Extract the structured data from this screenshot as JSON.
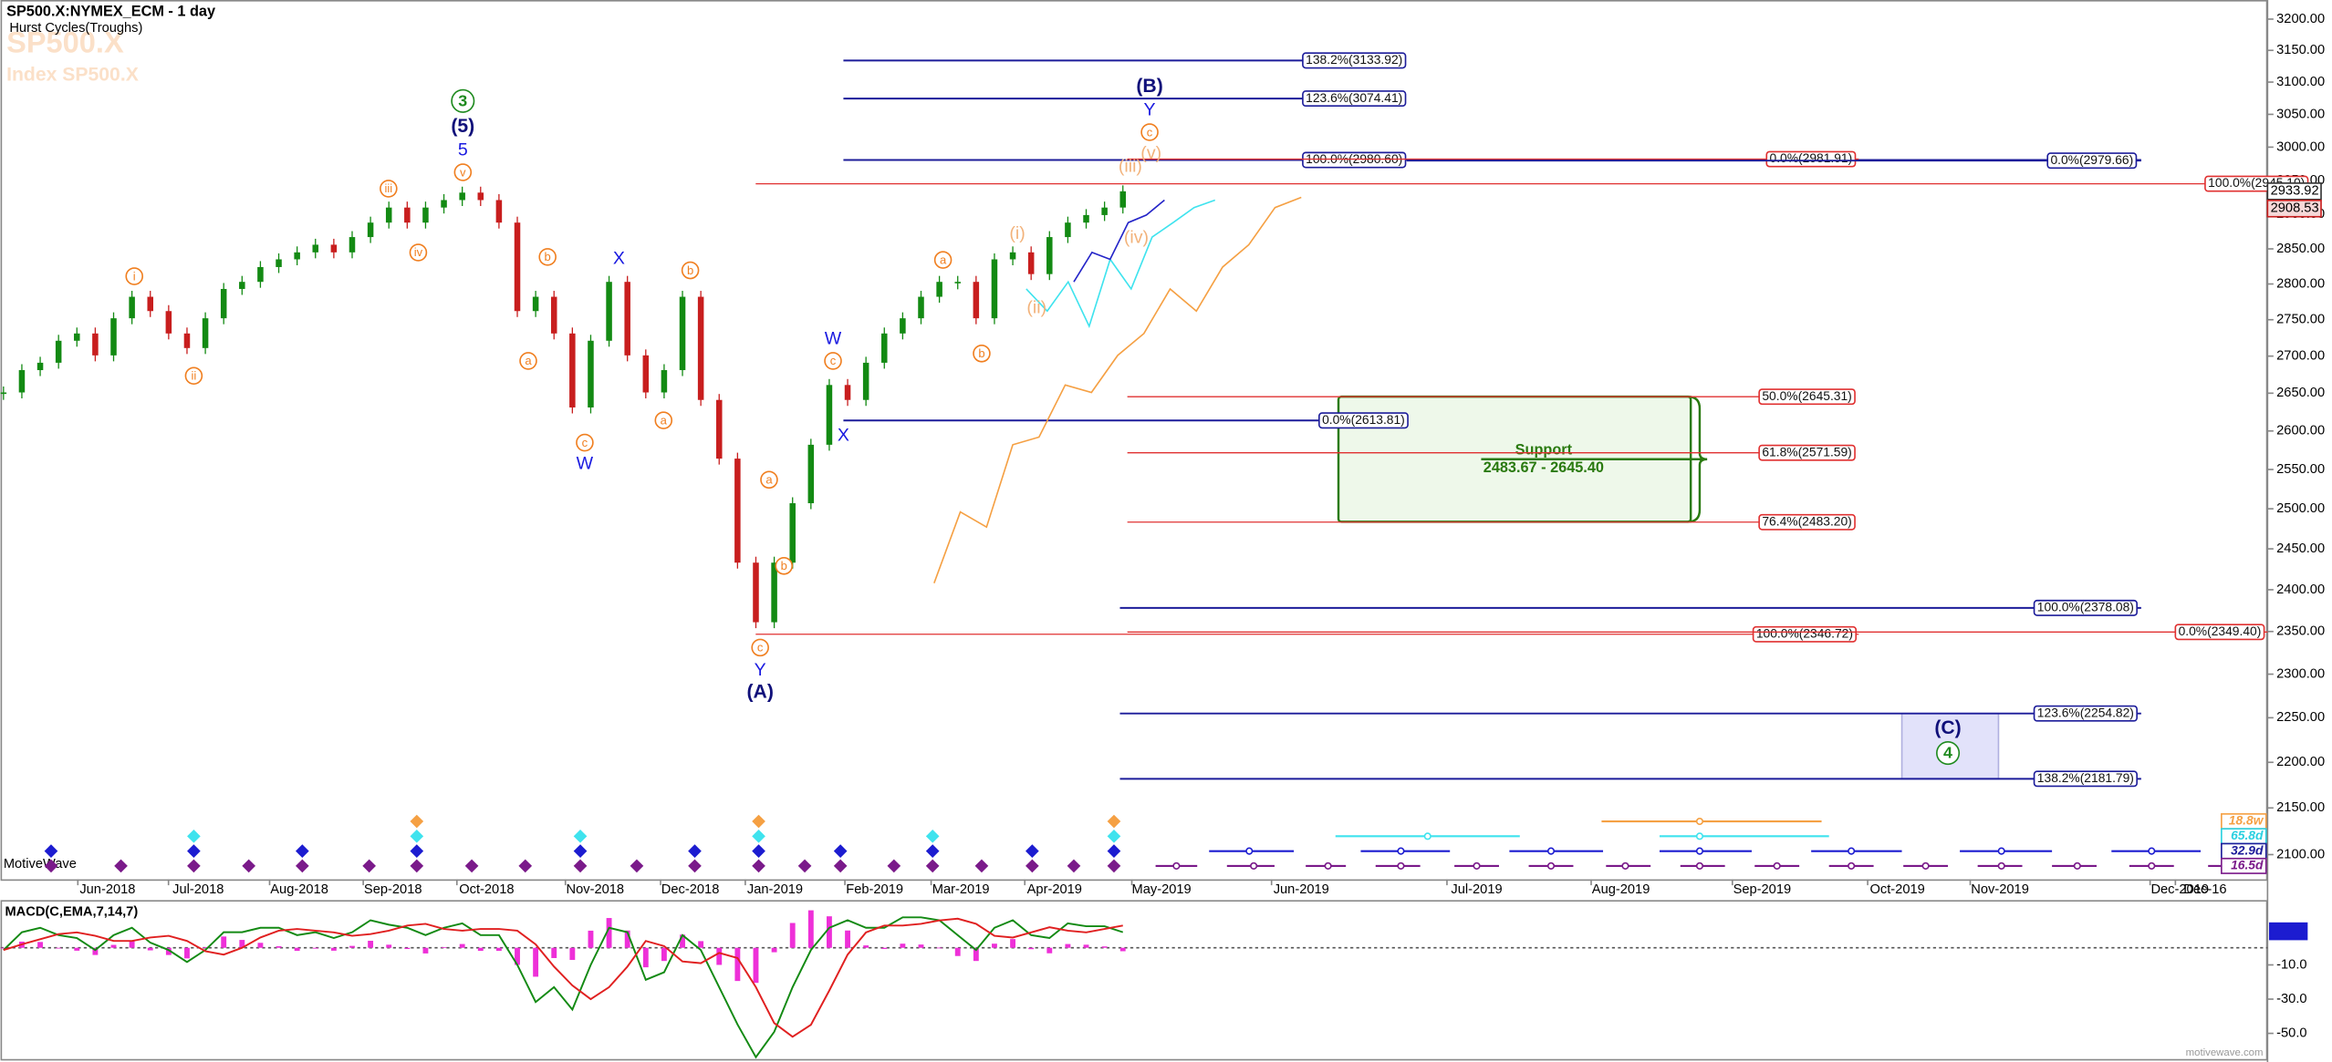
{
  "chart_data": [
    {
      "type": "candlestick",
      "title": "SP500.X:NYMEX_ECM - 1 day",
      "subtitle": "Hurst Cycles(Troughs)",
      "watermark": [
        "SP500.X",
        "Index SP500.X"
      ],
      "log_scale": true,
      "ylim": [
        2074,
        3231
      ],
      "yticks": [
        {
          "value": 2100,
          "label": "2100.00"
        },
        {
          "value": 2150,
          "label": "2150.00"
        },
        {
          "value": 2200,
          "label": "2200.00"
        },
        {
          "value": 2250,
          "label": "2250.00"
        },
        {
          "value": 2300,
          "label": "2300.00"
        },
        {
          "value": 2350,
          "label": "2350.00"
        },
        {
          "value": 2400,
          "label": "2400.00"
        },
        {
          "value": 2450,
          "label": "2450.00"
        },
        {
          "value": 2500,
          "label": "2500.00"
        },
        {
          "value": 2550,
          "label": "2550.00"
        },
        {
          "value": 2600,
          "label": "2600.00"
        },
        {
          "value": 2650,
          "label": "2650.00"
        },
        {
          "value": 2700,
          "label": "2700.00"
        },
        {
          "value": 2750,
          "label": "2750.00"
        },
        {
          "value": 2800,
          "label": "2800.00"
        },
        {
          "value": 2850,
          "label": "2850.00"
        },
        {
          "value": 2900,
          "label": "2900.00"
        },
        {
          "value": 2950,
          "label": "2950.00"
        },
        {
          "value": 3000,
          "label": "3000.00"
        },
        {
          "value": 3050,
          "label": "3050.00"
        },
        {
          "value": 3100,
          "label": "3100.00"
        },
        {
          "value": 3150,
          "label": "3150.00"
        },
        {
          "value": 3200,
          "label": "3200.00"
        }
      ],
      "values": [
        2651,
        2681,
        2691,
        2721,
        2731,
        2701,
        2752,
        2782,
        2762,
        2731,
        2711,
        2752,
        2793,
        2803,
        2824,
        2835,
        2845,
        2856,
        2845,
        2867,
        2888,
        2910,
        2888,
        2910,
        2921,
        2932,
        2921,
        2888,
        2762,
        2782,
        2731,
        2631,
        2721,
        2803,
        2701,
        2651,
        2681,
        2782,
        2641,
        2564,
        2433,
        2361,
        2433,
        2507,
        2582,
        2661,
        2641,
        2691,
        2731,
        2752,
        2782,
        2803,
        2803,
        2752,
        2835,
        2845,
        2814,
        2867,
        2888,
        2899,
        2910,
        2933.92
      ],
      "color_up": "#138a13",
      "color_down": "#c81e1e",
      "projections": [
        {
          "color": "#f5a043",
          "values": [
            2408,
            2496,
            2477,
            2582,
            2592,
            2661,
            2651,
            2701,
            2731,
            2793,
            2762,
            2824,
            2856,
            2910,
            2925
          ]
        },
        {
          "color": "#3fe3ee",
          "values": [
            2793,
            2762,
            2803,
            2741,
            2835,
            2793,
            2867,
            2888,
            2910,
            2921
          ]
        },
        {
          "color": "#2424c8",
          "values": [
            2803,
            2845,
            2835,
            2888,
            2899,
            2921
          ]
        }
      ],
      "last_price_labels": [
        {
          "value": 2933.92,
          "label": "2933.92"
        },
        {
          "value": 2908.53,
          "label": "2908.53"
        }
      ],
      "fib_levels": [
        {
          "label": "138.2%(3133.92)",
          "value": 3133.92,
          "color": "#1c1c9a"
        },
        {
          "label": "123.6%(3074.41)",
          "value": 3074.41,
          "color": "#1c1c9a"
        },
        {
          "label": "100.0%(2980.60)",
          "value": 2980.6,
          "color": "#1c1c9a"
        },
        {
          "label": "0.0%(2981.91)",
          "value": 2981.91,
          "color": "#e03030"
        },
        {
          "label": "0.0%(2979.66)",
          "value": 2979.66,
          "color": "#1c1c9a"
        },
        {
          "label": "100.0%(2945.10)",
          "value": 2945.1,
          "color": "#e03030"
        },
        {
          "label": "0.0%(2613.81)",
          "value": 2613.81,
          "color": "#1c1c9a"
        },
        {
          "label": "50.0%(2645.31)",
          "value": 2645.31,
          "color": "#e03030"
        },
        {
          "label": "61.8%(2571.59)",
          "value": 2571.59,
          "color": "#e03030"
        },
        {
          "label": "76.4%(2483.20)",
          "value": 2483.2,
          "color": "#e03030"
        },
        {
          "label": "100.0%(2378.08)",
          "value": 2378.08,
          "color": "#1c1c9a"
        },
        {
          "label": "100.0%(2346.72)",
          "value": 2346.72,
          "color": "#e03030"
        },
        {
          "label": "0.0%(2349.40)",
          "value": 2349.4,
          "color": "#e03030"
        },
        {
          "label": "123.6%(2254.82)",
          "value": 2254.82,
          "color": "#1c1c9a"
        },
        {
          "label": "138.2%(2181.79)",
          "value": 2181.79,
          "color": "#1c1c9a"
        }
      ],
      "support": {
        "label": "Support",
        "range": "2483.67 - 2645.40",
        "low": 2483.67,
        "high": 2645.4,
        "color": "#2a7a10"
      },
      "wave_labels": [
        {
          "text": "3",
          "color": "#1e8a1e",
          "circled": true
        },
        {
          "text": "(5)",
          "color": "#10107a",
          "bold": true
        },
        {
          "text": "5",
          "color": "#1a1ae0"
        },
        {
          "text": "v",
          "color": "#f07f20",
          "circled": true
        },
        {
          "text": "iii",
          "color": "#f07f20",
          "circled": true
        },
        {
          "text": "iv",
          "color": "#f07f20",
          "circled": true
        },
        {
          "text": "i",
          "color": "#f07f20",
          "circled": true
        },
        {
          "text": "ii",
          "color": "#f07f20",
          "circled": true
        },
        {
          "text": "b",
          "color": "#f07f20",
          "circled": true
        },
        {
          "text": "a",
          "color": "#f07f20",
          "circled": true
        },
        {
          "text": "X",
          "color": "#1a1ae0"
        },
        {
          "text": "c",
          "color": "#f07f20",
          "circled": true
        },
        {
          "text": "W",
          "color": "#1a1ae0"
        },
        {
          "text": "b",
          "color": "#f07f20",
          "circled": true
        },
        {
          "text": "a",
          "color": "#f07f20",
          "circled": true
        },
        {
          "text": "a",
          "color": "#f07f20",
          "circled": true
        },
        {
          "text": "b",
          "color": "#f07f20",
          "circled": true
        },
        {
          "text": "c",
          "color": "#f07f20",
          "circled": true
        },
        {
          "text": "Y",
          "color": "#1a1ae0"
        },
        {
          "text": "(A)",
          "color": "#10107a",
          "bold": true
        },
        {
          "text": "W",
          "color": "#1a1ae0"
        },
        {
          "text": "c",
          "color": "#f07f20",
          "circled": true
        },
        {
          "text": "X",
          "color": "#1a1ae0"
        },
        {
          "text": "a",
          "color": "#f07f20",
          "circled": true
        },
        {
          "text": "b",
          "color": "#f07f20",
          "circled": true
        },
        {
          "text": "(i)",
          "color": "#f2b27a"
        },
        {
          "text": "(ii)",
          "color": "#f2b27a"
        },
        {
          "text": "(iii)",
          "color": "#f2b27a"
        },
        {
          "text": "(iv)",
          "color": "#f2b27a"
        },
        {
          "text": "(v)",
          "color": "#f2b27a"
        },
        {
          "text": "c",
          "color": "#f07f20",
          "circled": true
        },
        {
          "text": "Y",
          "color": "#1a1ae0"
        },
        {
          "text": "(B)",
          "color": "#10107a",
          "bold": true
        },
        {
          "text": "(C)",
          "color": "#10107a",
          "bold": true
        },
        {
          "text": "4",
          "color": "#1e8a1e",
          "circled": true
        }
      ],
      "x_labels": [
        "Jun-2018",
        "Jul-2018",
        "Aug-2018",
        "Sep-2018",
        "Oct-2018",
        "Nov-2018",
        "Dec-2018",
        "Jan-2019",
        "Feb-2019",
        "Mar-2019",
        "Apr-2019",
        "May-2019",
        "Jun-2019",
        "Jul-2019",
        "Aug-2019",
        "Sep-2019",
        "Oct-2019",
        "Nov-2019",
        "Dec-2019",
        "Dec-16"
      ],
      "cycle_labels": [
        {
          "text": "18.8w",
          "color": "#f5a043"
        },
        {
          "text": "65.8d",
          "color": "#2ad0e0"
        },
        {
          "text": "32.9d",
          "color": "#1c1c9a"
        },
        {
          "text": "16.5d",
          "color": "#7a1a8a"
        }
      ],
      "footer": "MotiveWave"
    },
    {
      "type": "macd",
      "title": "MACD(C,EMA,7,14,7)",
      "ylim": [
        -65,
        27
      ],
      "yticks": [
        {
          "value": -10,
          "label": "-10.0"
        },
        {
          "value": -30,
          "label": "-30.0"
        },
        {
          "value": -50,
          "label": "-50.0"
        }
      ],
      "macd": [
        -1.3,
        9.1,
        11.7,
        7.4,
        5.7,
        -1.3,
        7.4,
        11.7,
        3.0,
        -1.3,
        -8.3,
        -1.3,
        9.1,
        9.1,
        11.7,
        11.7,
        7.4,
        9.1,
        5.7,
        9.1,
        16.1,
        13.5,
        11.7,
        7.4,
        11.7,
        14.3,
        7.4,
        7.4,
        -10,
        -31.7,
        -23,
        -36.1,
        -10,
        11.7,
        9.1,
        -18.7,
        -14.3,
        7.4,
        -1.3,
        -23,
        -44.8,
        -63.9,
        -49.1,
        -23,
        -1.3,
        11.7,
        16.1,
        11.7,
        11.7,
        17.8,
        17.8,
        16.1,
        7.4,
        -1.3,
        11.7,
        16.1,
        7.4,
        5.7,
        14.3,
        12.6,
        12.6,
        9.1
      ],
      "signal": [
        -1.3,
        2,
        5,
        8,
        9,
        7,
        4,
        4,
        6,
        7,
        4,
        -2,
        -4,
        0,
        6,
        10,
        11,
        10,
        9,
        7,
        8,
        10,
        13,
        14,
        11,
        10,
        11,
        11,
        10,
        2,
        -11,
        -22,
        -30,
        -23,
        -11,
        4,
        1,
        -8,
        -9,
        -3,
        -6,
        -23,
        -44,
        -52,
        -45,
        -25,
        -4,
        9,
        13,
        13,
        14,
        16,
        17,
        14,
        7,
        6,
        9,
        12,
        10,
        9,
        11,
        13
      ],
      "histogram": [
        0,
        3.6,
        3.4,
        -0.3,
        -1.7,
        -4.2,
        1.7,
        3.9,
        -1.5,
        -4.2,
        -6.2,
        0.4,
        6.6,
        4.6,
        2.9,
        0.9,
        -1.8,
        -0.5,
        -1.7,
        1.1,
        4.1,
        1.8,
        -0.7,
        -3.3,
        0.4,
        2.2,
        -1.8,
        -1.8,
        -10,
        -16.9,
        -6,
        -7.1,
        10,
        17.4,
        10.1,
        -11.4,
        -7.7,
        7.7,
        3.9,
        -10,
        -19.4,
        -20.5,
        -2.6,
        14.5,
        21.9,
        18.4,
        10.1,
        1.4,
        -0.7,
        2.4,
        1.9,
        0.1,
        -4.8,
        -7.7,
        2.4,
        5.1,
        -0.8,
        -3.2,
        2.2,
        1.8,
        0.8,
        -2
      ],
      "macd_color": "#138a13",
      "signal_color": "#e02020",
      "histogram_color": "#ee30d8"
    }
  ],
  "footer_url": "motivewave.com"
}
